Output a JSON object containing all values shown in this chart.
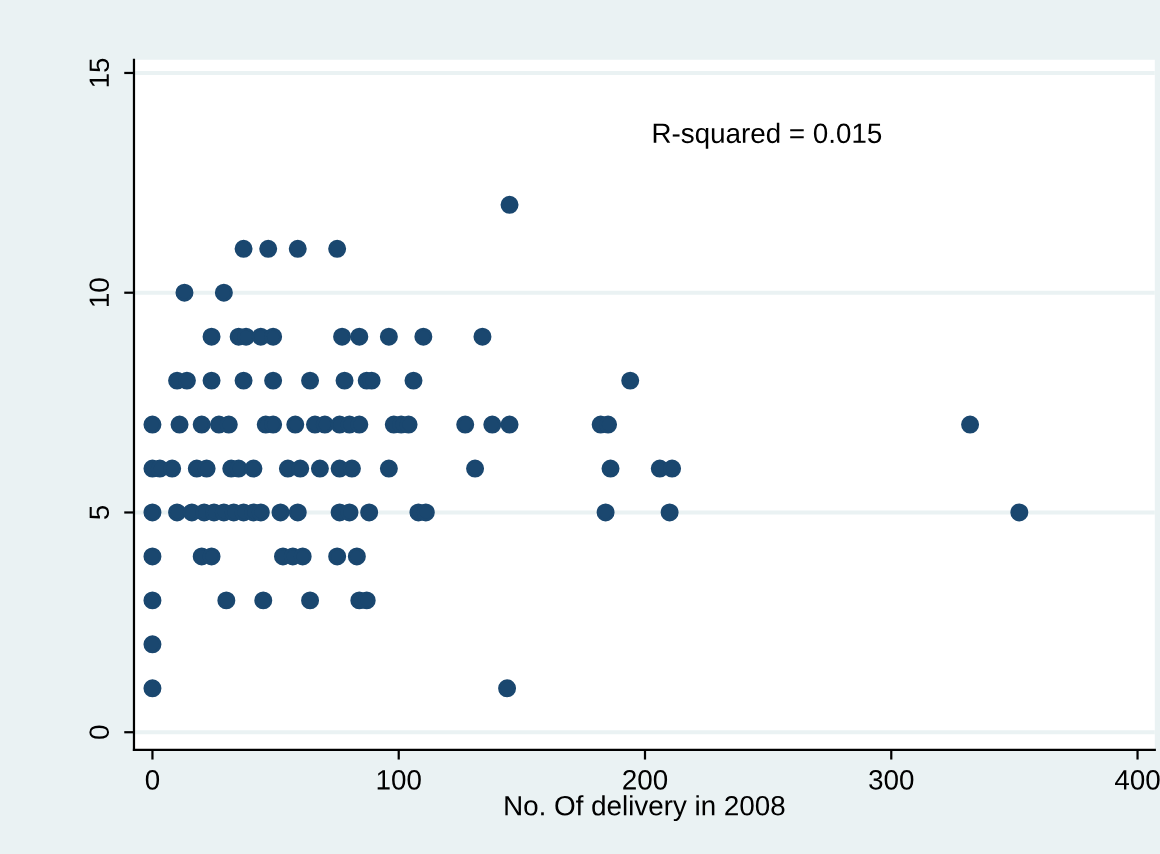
{
  "chart_data": {
    "type": "scatter",
    "xlabel": "No. Of delivery in 2008",
    "annotations": [
      "R-squared = 0.015"
    ],
    "series": [
      {
        "color": "#1a476f",
        "x": [
          145,
          37,
          47,
          59,
          75,
          13,
          29,
          24,
          35,
          38,
          44,
          49,
          77,
          84,
          96,
          110,
          134,
          10,
          14,
          24,
          37,
          49,
          64,
          78,
          87,
          89,
          106,
          194,
          0,
          11,
          20,
          27,
          31,
          46,
          49,
          58,
          66,
          70,
          76,
          80,
          84,
          98,
          101,
          104,
          127,
          138,
          145,
          182,
          185,
          332,
          0,
          3,
          8,
          18,
          22,
          32,
          35,
          41,
          55,
          60,
          68,
          76,
          81,
          96,
          131,
          186,
          206,
          211,
          0,
          10,
          16,
          21,
          25,
          29,
          33,
          37,
          41,
          44,
          52,
          59,
          76,
          80,
          88,
          108,
          111,
          184,
          210,
          352,
          0,
          20,
          24,
          53,
          57,
          61,
          75,
          83,
          0,
          30,
          45,
          64,
          84,
          87,
          0,
          0,
          144
        ],
        "values": [
          12,
          11,
          11,
          11,
          11,
          10,
          10,
          9,
          9,
          9,
          9,
          9,
          9,
          9,
          9,
          9,
          9,
          8,
          8,
          8,
          8,
          8,
          8,
          8,
          8,
          8,
          8,
          8,
          7,
          7,
          7,
          7,
          7,
          7,
          7,
          7,
          7,
          7,
          7,
          7,
          7,
          7,
          7,
          7,
          7,
          7,
          7,
          7,
          7,
          7,
          6,
          6,
          6,
          6,
          6,
          6,
          6,
          6,
          6,
          6,
          6,
          6,
          6,
          6,
          6,
          6,
          6,
          6,
          5,
          5,
          5,
          5,
          5,
          5,
          5,
          5,
          5,
          5,
          5,
          5,
          5,
          5,
          5,
          5,
          5,
          5,
          5,
          5,
          4,
          4,
          4,
          4,
          4,
          4,
          4,
          4,
          3,
          3,
          3,
          3,
          3,
          3,
          2,
          1,
          1
        ]
      }
    ],
    "marker": "circle",
    "grid": "y",
    "xlim": [
      -7.5,
      407
    ],
    "xticks": [
      0,
      100,
      200,
      300,
      400
    ],
    "ylim": [
      -0.4,
      15.3
    ],
    "yticks": [
      0,
      5,
      10,
      15
    ]
  }
}
